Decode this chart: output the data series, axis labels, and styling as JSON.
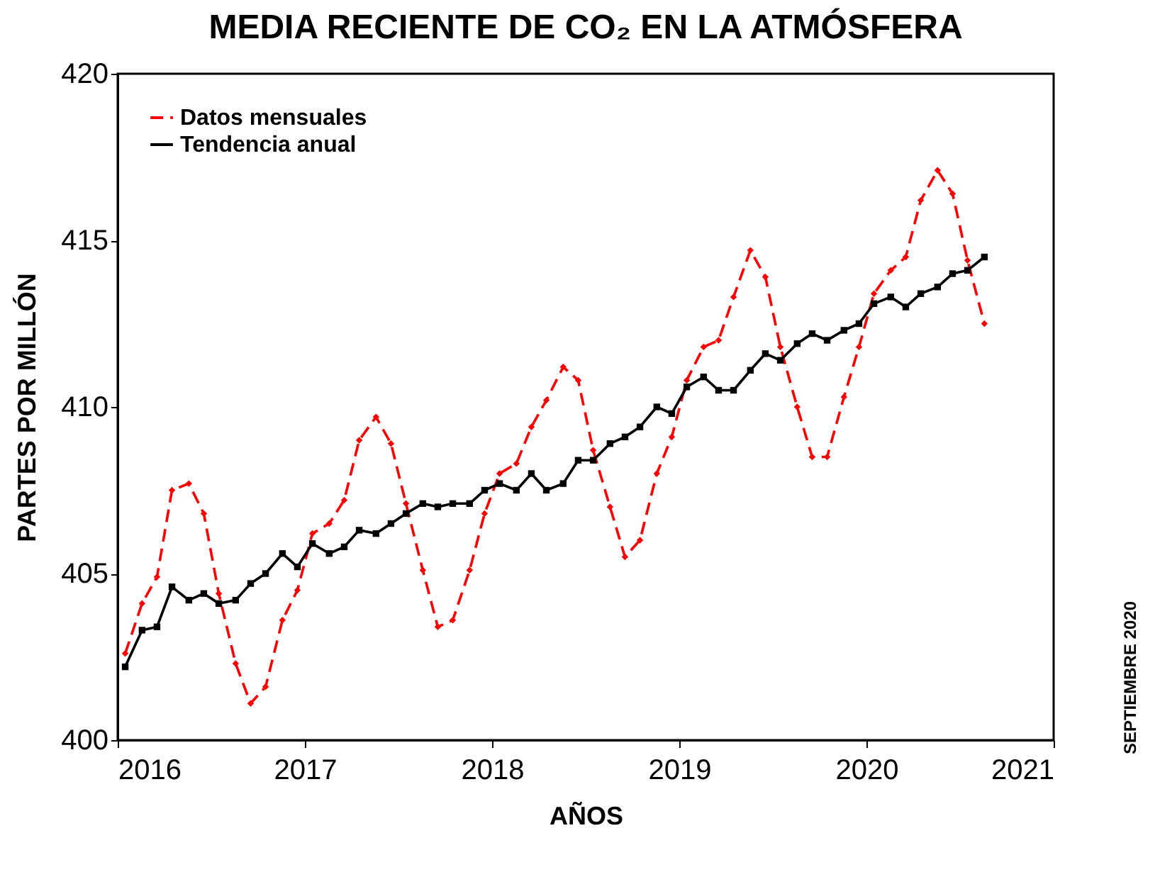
{
  "chart_data": {
    "type": "line",
    "title": "MEDIA RECIENTE DE CO₂ EN LA ATMÓSFERA",
    "xlabel": "AÑOS",
    "ylabel": "PARTES POR MILLÓN",
    "annotations": [
      "SEPTIEMBRE 2020"
    ],
    "x": [
      2016.04,
      2016.13,
      2016.21,
      2016.29,
      2016.38,
      2016.46,
      2016.54,
      2016.63,
      2016.71,
      2016.79,
      2016.88,
      2016.96,
      2017.04,
      2017.13,
      2017.21,
      2017.29,
      2017.38,
      2017.46,
      2017.54,
      2017.63,
      2017.71,
      2017.79,
      2017.88,
      2017.96,
      2018.04,
      2018.13,
      2018.21,
      2018.29,
      2018.38,
      2018.46,
      2018.54,
      2018.63,
      2018.71,
      2018.79,
      2018.88,
      2018.96,
      2019.04,
      2019.13,
      2019.21,
      2019.29,
      2019.38,
      2019.46,
      2019.54,
      2019.63,
      2019.71,
      2019.79,
      2019.88,
      2019.96,
      2020.04,
      2020.13,
      2020.21,
      2020.29,
      2020.38,
      2020.46,
      2020.54,
      2020.63
    ],
    "series": [
      {
        "name": "Datos mensuales",
        "color": "#ff0000",
        "line_style": "dashed",
        "marker": "diamond",
        "values": [
          402.6,
          404.1,
          404.9,
          407.5,
          407.7,
          406.8,
          404.4,
          402.3,
          401.1,
          401.6,
          403.6,
          404.5,
          406.2,
          406.5,
          407.2,
          409.0,
          409.7,
          408.9,
          407.1,
          405.1,
          403.4,
          403.6,
          405.1,
          406.8,
          408.0,
          408.3,
          409.4,
          410.2,
          411.2,
          410.8,
          408.7,
          407.0,
          405.5,
          406.0,
          408.0,
          409.1,
          410.8,
          411.8,
          412.0,
          413.3,
          414.7,
          413.9,
          411.8,
          410.0,
          408.5,
          408.5,
          410.3,
          411.8,
          413.4,
          414.1,
          414.5,
          416.2,
          417.1,
          416.4,
          414.4,
          412.5
        ]
      },
      {
        "name": "Tendencia anual",
        "color": "#000000",
        "line_style": "solid",
        "marker": "square",
        "values": [
          402.2,
          403.3,
          403.4,
          404.6,
          404.2,
          404.4,
          404.1,
          404.2,
          404.7,
          405.0,
          405.6,
          405.2,
          405.9,
          405.6,
          405.8,
          406.3,
          406.2,
          406.5,
          406.8,
          407.1,
          407.0,
          407.1,
          407.1,
          407.5,
          407.7,
          407.5,
          408.0,
          407.5,
          407.7,
          408.4,
          408.4,
          408.9,
          409.1,
          409.4,
          410.0,
          409.8,
          410.6,
          410.9,
          410.5,
          410.5,
          411.1,
          411.6,
          411.4,
          411.9,
          412.2,
          412.0,
          412.3,
          412.5,
          413.1,
          413.3,
          413.0,
          413.4,
          413.6,
          414.0,
          414.1,
          414.5
        ]
      }
    ],
    "xlim": [
      2016,
      2021
    ],
    "xticks": [
      2016,
      2017,
      2018,
      2019,
      2020,
      2021
    ],
    "ylim": [
      400,
      420
    ],
    "yticks": [
      400,
      405,
      410,
      415,
      420
    ],
    "grid": false,
    "legend": "top left"
  }
}
